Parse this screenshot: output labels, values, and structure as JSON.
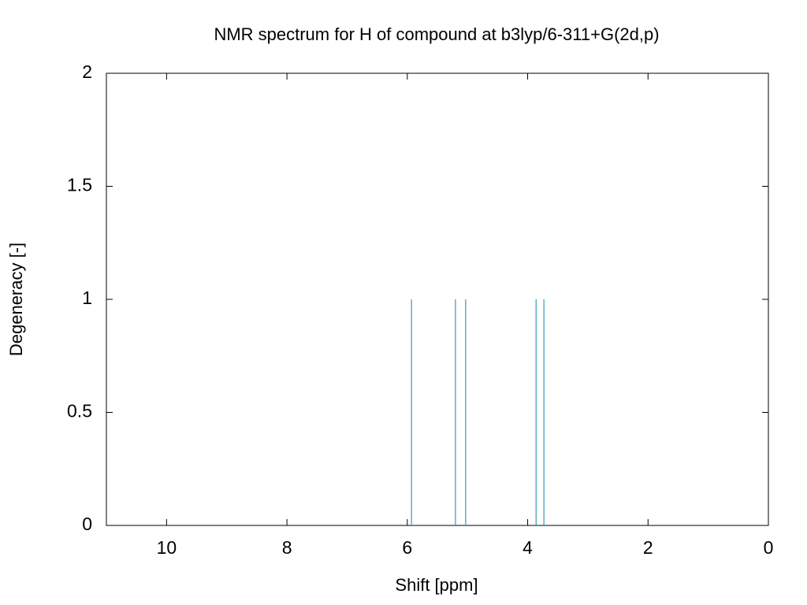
{
  "chart_data": {
    "type": "stem",
    "title": "NMR spectrum for H of compound at b3lyp/6-311+G(2d,p)",
    "x_label": "Shift [ppm]",
    "y_label": "Degeneracy [-]",
    "x": [
      5.93,
      5.2,
      5.03,
      3.86,
      3.73
    ],
    "values": [
      1,
      1,
      1,
      1,
      1
    ],
    "color": "#3399bb",
    "xlim": [
      11,
      0
    ],
    "xticks": [
      10,
      8,
      6,
      4,
      2,
      0
    ],
    "ylim": [
      0,
      2
    ],
    "yticks": [
      0,
      0.5,
      1,
      1.5,
      2
    ],
    "grid": false
  }
}
